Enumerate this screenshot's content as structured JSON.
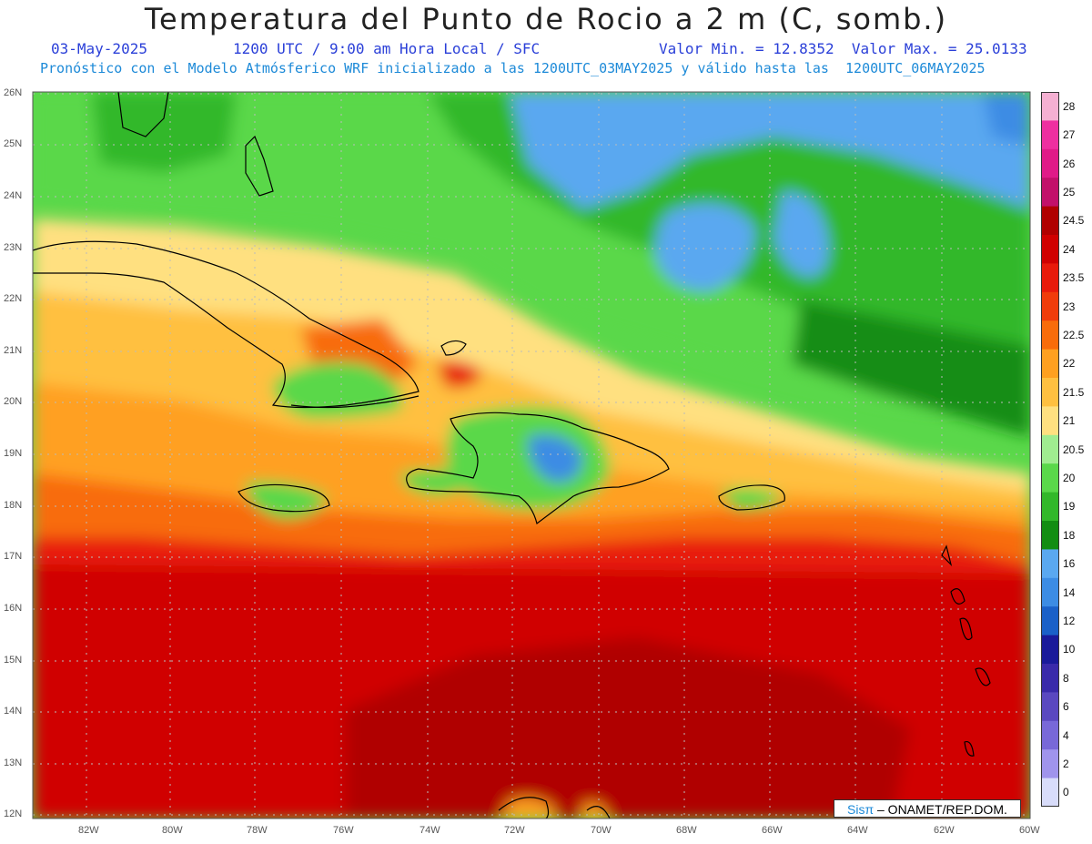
{
  "header": {
    "title": "Temperatura del Punto de Rocio a 2 m (C, somb.)",
    "date": "03-May-2025",
    "time": "1200 UTC / 9:00 am Hora Local / SFC",
    "minmax": "Valor Min. = 12.8352  Valor Max. = 25.0133",
    "description": "Pronóstico con el Modelo Atmósferico WRF inicializado a las 1200UTC_03MAY2025 y válido hasta las  1200UTC_06MAY2025"
  },
  "map": {
    "lat_labels": [
      "26N",
      "25N",
      "24N",
      "23N",
      "22N",
      "21N",
      "20N",
      "19N",
      "18N",
      "17N",
      "16N",
      "15N",
      "14N",
      "13N",
      "12N"
    ],
    "lon_labels": [
      "82W",
      "80W",
      "78W",
      "76W",
      "74W",
      "72W",
      "70W",
      "68W",
      "66W",
      "64W",
      "62W",
      "60W"
    ]
  },
  "colorbar": {
    "labels": [
      "28",
      "27",
      "26",
      "25",
      "24.5",
      "24",
      "23.5",
      "23",
      "22.5",
      "22",
      "21.5",
      "21",
      "20.5",
      "20",
      "19",
      "18",
      "16",
      "14",
      "12",
      "10",
      "8",
      "6",
      "4",
      "2",
      "0"
    ],
    "colors": [
      "#f5b0d2",
      "#ee2fa0",
      "#e01a88",
      "#c2106a",
      "#b00000",
      "#d00000",
      "#e81a0a",
      "#f03c0a",
      "#f86c0a",
      "#ffa020",
      "#ffc040",
      "#ffe080",
      "#a0ec90",
      "#5ad84a",
      "#32b82a",
      "#128d12",
      "#5aa8f0",
      "#3c8ce4",
      "#1a60c8",
      "#1a1a9a",
      "#3a2aaa",
      "#5a48c0",
      "#7868d8",
      "#a094ec",
      "#d8dcfa"
    ]
  },
  "credit": {
    "brand": "Sisπ",
    "text": " – ONAMET/REP.DOM."
  }
}
